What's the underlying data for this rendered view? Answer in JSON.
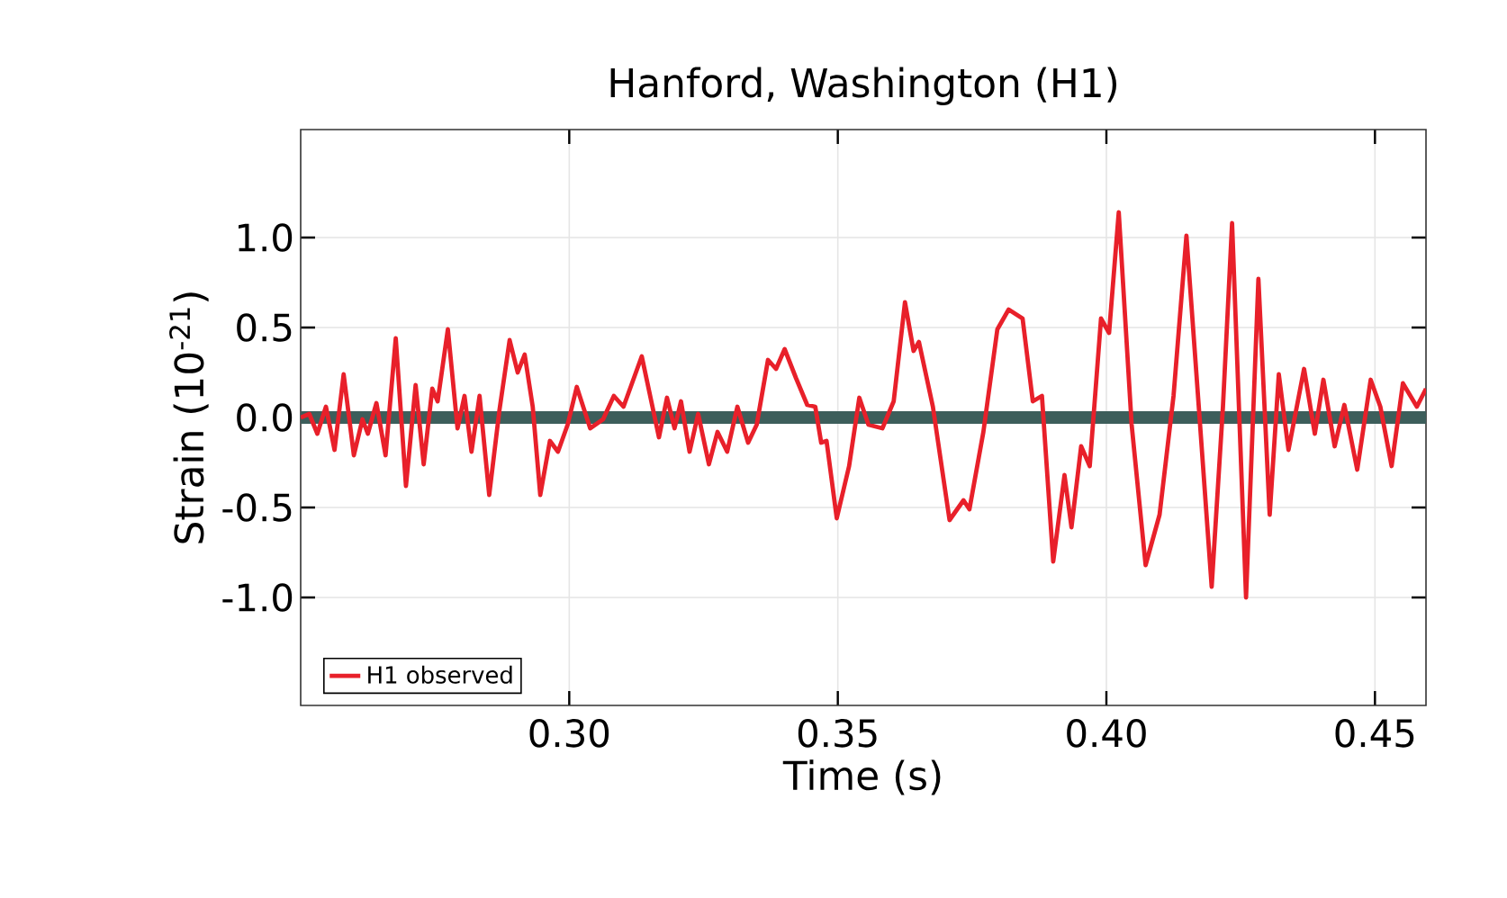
{
  "chart_data": {
    "type": "line",
    "title": "Hanford, Washington (H1)",
    "xlabel": "Time (s)",
    "ylabel": "Strain (10$^{-21}$)",
    "xlim": [
      0.25,
      0.4595
    ],
    "ylim": [
      -1.6,
      1.6
    ],
    "xticks": [
      {
        "value": 0.3,
        "label": "0.30"
      },
      {
        "value": 0.35,
        "label": "0.35"
      },
      {
        "value": 0.4,
        "label": "0.40"
      },
      {
        "value": 0.45,
        "label": "0.45"
      }
    ],
    "yticks": [
      {
        "value": -1.0,
        "label": "-1.0"
      },
      {
        "value": -0.5,
        "label": "-0.5"
      },
      {
        "value": 0.0,
        "label": "0.0"
      },
      {
        "value": 0.5,
        "label": "0.5"
      },
      {
        "value": 1.0,
        "label": "1.0"
      }
    ],
    "grid": true,
    "legend": "bottom left",
    "ref_lines": [
      {
        "axis": "y",
        "value": 0,
        "color": "#3d5e5b"
      }
    ],
    "series": [
      {
        "name": "H1 observed",
        "color": "#e8202a",
        "x": [
          0.25,
          0.2516,
          0.2531,
          0.2547,
          0.2563,
          0.258,
          0.2599,
          0.2615,
          0.2625,
          0.2641,
          0.2658,
          0.2677,
          0.2696,
          0.2714,
          0.2729,
          0.2745,
          0.2755,
          0.2774,
          0.2792,
          0.2805,
          0.2818,
          0.2833,
          0.2851,
          0.287,
          0.2889,
          0.2904,
          0.2917,
          0.2932,
          0.2946,
          0.2964,
          0.2979,
          0.2997,
          0.3014,
          0.3039,
          0.3063,
          0.3083,
          0.3101,
          0.3135,
          0.3167,
          0.3182,
          0.3196,
          0.3208,
          0.3224,
          0.324,
          0.326,
          0.3276,
          0.3294,
          0.3313,
          0.3333,
          0.3349,
          0.337,
          0.3385,
          0.3401,
          0.3422,
          0.3443,
          0.3458,
          0.3469,
          0.3479,
          0.3498,
          0.3521,
          0.354,
          0.3557,
          0.3583,
          0.3604,
          0.3625,
          0.3641,
          0.3651,
          0.3677,
          0.3708,
          0.3734,
          0.3745,
          0.3771,
          0.3797,
          0.3818,
          0.3844,
          0.3863,
          0.388,
          0.3901,
          0.3922,
          0.3935,
          0.3953,
          0.3969,
          0.399,
          0.4005,
          0.4023,
          0.4047,
          0.4073,
          0.4099,
          0.4125,
          0.4149,
          0.4172,
          0.4196,
          0.4217,
          0.4234,
          0.426,
          0.4283,
          0.4304,
          0.4321,
          0.4339,
          0.4368,
          0.4388,
          0.4404,
          0.4425,
          0.4443,
          0.4467,
          0.4492,
          0.451,
          0.4531,
          0.4552,
          0.4578,
          0.4595
        ],
        "values": [
          0,
          0.02,
          -0.09,
          0.06,
          -0.18,
          0.24,
          -0.21,
          -0.01,
          -0.09,
          0.08,
          -0.21,
          0.44,
          -0.38,
          0.18,
          -0.26,
          0.16,
          0.09,
          0.49,
          -0.06,
          0.12,
          -0.19,
          0.12,
          -0.43,
          0.04,
          0.43,
          0.25,
          0.35,
          0.06,
          -0.43,
          -0.13,
          -0.19,
          -0.04,
          0.17,
          -0.06,
          -0.01,
          0.12,
          0.06,
          0.34,
          -0.11,
          0.11,
          -0.06,
          0.09,
          -0.19,
          0.02,
          -0.26,
          -0.08,
          -0.19,
          0.06,
          -0.14,
          -0.04,
          0.32,
          0.27,
          0.38,
          0.22,
          0.07,
          0.06,
          -0.14,
          -0.13,
          -0.56,
          -0.27,
          0.11,
          -0.04,
          -0.06,
          0.09,
          0.64,
          0.37,
          0.42,
          0.06,
          -0.57,
          -0.46,
          -0.51,
          -0.08,
          0.49,
          0.6,
          0.55,
          0.09,
          0.12,
          -0.8,
          -0.32,
          -0.61,
          -0.16,
          -0.27,
          0.55,
          0.47,
          1.14,
          -0.04,
          -0.82,
          -0.54,
          0.12,
          1.01,
          0.06,
          -0.94,
          0.06,
          1.08,
          -1.0,
          0.77,
          -0.54,
          0.24,
          -0.18,
          0.27,
          -0.09,
          0.21,
          -0.16,
          0.07,
          -0.29,
          0.21,
          0.06,
          -0.27,
          0.19,
          0.06,
          0.16
        ]
      }
    ]
  }
}
